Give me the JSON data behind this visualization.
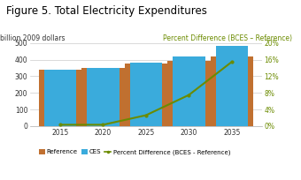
{
  "title": "Figure 5. Total Electricity Expenditures",
  "ylabel_left": "billion 2009 dollars",
  "ylabel_right": "Percent Difference (BCES – Reference)",
  "years": [
    2015,
    2020,
    2025,
    2030,
    2035
  ],
  "reference": [
    338,
    352,
    375,
    393,
    418
  ],
  "ces": [
    338,
    352,
    385,
    422,
    483
  ],
  "pct_diff": [
    0.3,
    0.3,
    2.6,
    7.5,
    15.5
  ],
  "bar_width": 2.5,
  "ref_color": "#C07030",
  "ces_color": "#3AABDC",
  "line_color": "#6B8B00",
  "ylim_left": [
    0,
    500
  ],
  "ylim_right": [
    0,
    20
  ],
  "yticks_left": [
    0,
    100,
    200,
    300,
    400,
    500
  ],
  "yticks_right": [
    0,
    4,
    8,
    12,
    16,
    20
  ],
  "background_color": "#FFFFFF",
  "title_fontsize": 8.5,
  "axis_label_fontsize": 5.5,
  "tick_fontsize": 5.5,
  "legend_fontsize": 5.0
}
